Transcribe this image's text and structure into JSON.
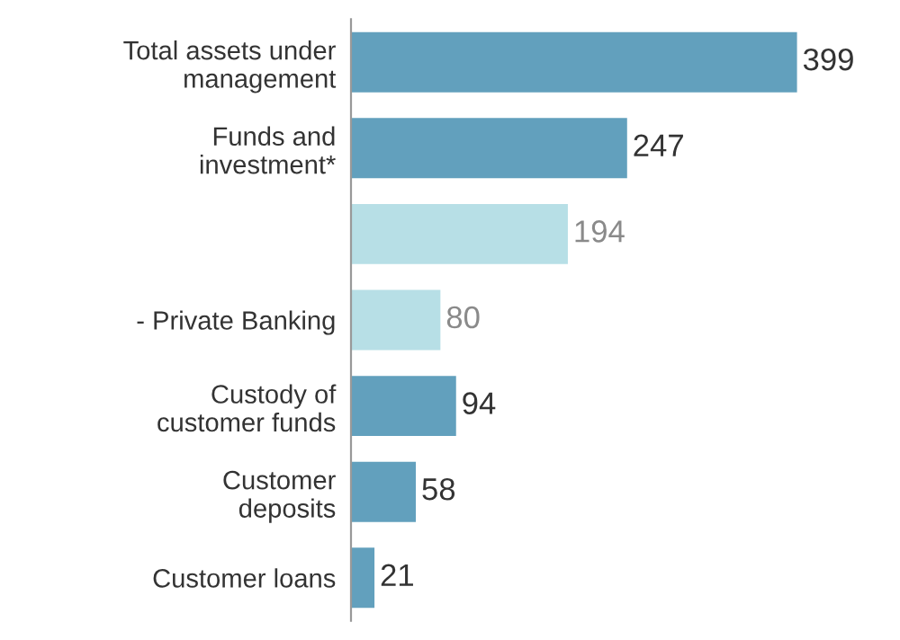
{
  "chart_data": {
    "type": "bar",
    "orientation": "horizontal",
    "categories": [
      "Total assets under\nmanagement",
      "Funds and\ninvestment*",
      null,
      "- Private Banking",
      "Custody of\ncustomer funds",
      "Customer\ndeposits",
      "Customer loans"
    ],
    "values": [
      399,
      247,
      194,
      80,
      94,
      58,
      21
    ],
    "colors": [
      "#62a0bd",
      "#62a0bd",
      "#b7dfe6",
      "#b7dfe6",
      "#62a0bd",
      "#62a0bd",
      "#62a0bd"
    ],
    "data_labels": true,
    "grid": false,
    "legend": false
  }
}
